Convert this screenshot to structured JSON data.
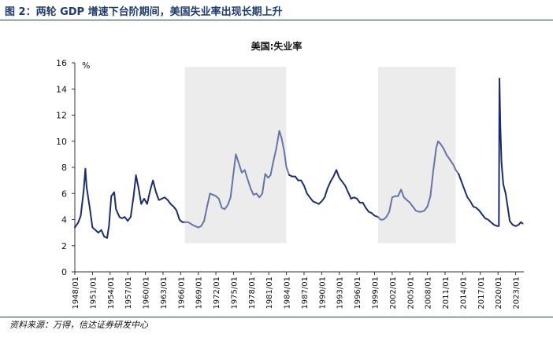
{
  "figure": {
    "title": "图 2：两轮 GDP 增速下台阶期间，美国失业率出现长期上升",
    "source": "资料来源：万得，信达证券研发中心"
  },
  "chart_data": {
    "type": "line",
    "title": "美国:失业率",
    "unit": "%",
    "ylim": [
      0,
      16
    ],
    "y_ticks": [
      "0",
      "2",
      "4",
      "6",
      "8",
      "10",
      "12",
      "14",
      "16"
    ],
    "x_tick_labels": [
      "1948/01",
      "1951/01",
      "1954/01",
      "1957/01",
      "1960/01",
      "1963/01",
      "1966/01",
      "1969/01",
      "1972/01",
      "1975/01",
      "1978/01",
      "1981/01",
      "1984/01",
      "1987/01",
      "1990/01",
      "1993/01",
      "1996/01",
      "1999/01",
      "2002/01",
      "2005/01",
      "2008/01",
      "2011/01",
      "2014/01",
      "2017/01",
      "2020/01",
      "2023/01"
    ],
    "shaded_periods": [
      {
        "start": 1966.7,
        "end": 1984.0
      },
      {
        "start": 1999.6,
        "end": 2012.8
      }
    ],
    "grid": false,
    "legend": "none",
    "series": [
      {
        "color": "#1c2d6b",
        "shaded_color": "#6574a6",
        "points": [
          [
            1948.0,
            3.4
          ],
          [
            1948.6,
            3.8
          ],
          [
            1949.0,
            4.3
          ],
          [
            1949.5,
            6.2
          ],
          [
            1949.8,
            7.9
          ],
          [
            1950.0,
            6.5
          ],
          [
            1950.5,
            5.0
          ],
          [
            1951.0,
            3.4
          ],
          [
            1951.5,
            3.2
          ],
          [
            1952.0,
            3.0
          ],
          [
            1952.5,
            3.2
          ],
          [
            1953.0,
            2.7
          ],
          [
            1953.5,
            2.6
          ],
          [
            1953.8,
            3.5
          ],
          [
            1954.2,
            5.8
          ],
          [
            1954.7,
            6.1
          ],
          [
            1955.0,
            4.8
          ],
          [
            1955.6,
            4.2
          ],
          [
            1956.0,
            4.1
          ],
          [
            1956.5,
            4.2
          ],
          [
            1957.0,
            3.9
          ],
          [
            1957.5,
            4.2
          ],
          [
            1958.0,
            5.8
          ],
          [
            1958.4,
            7.4
          ],
          [
            1958.8,
            6.5
          ],
          [
            1959.3,
            5.2
          ],
          [
            1959.8,
            5.6
          ],
          [
            1960.3,
            5.2
          ],
          [
            1960.8,
            6.2
          ],
          [
            1961.3,
            7.0
          ],
          [
            1961.8,
            6.1
          ],
          [
            1962.3,
            5.5
          ],
          [
            1962.8,
            5.6
          ],
          [
            1963.3,
            5.7
          ],
          [
            1963.8,
            5.5
          ],
          [
            1964.3,
            5.2
          ],
          [
            1964.8,
            5.0
          ],
          [
            1965.3,
            4.7
          ],
          [
            1965.8,
            4.0
          ],
          [
            1966.3,
            3.8
          ],
          [
            1966.7,
            3.8
          ],
          [
            1967.3,
            3.8
          ],
          [
            1968.0,
            3.6
          ],
          [
            1968.5,
            3.5
          ],
          [
            1969.0,
            3.4
          ],
          [
            1969.5,
            3.5
          ],
          [
            1970.0,
            3.9
          ],
          [
            1970.5,
            5.0
          ],
          [
            1971.0,
            6.0
          ],
          [
            1971.5,
            5.9
          ],
          [
            1972.0,
            5.8
          ],
          [
            1972.5,
            5.6
          ],
          [
            1973.0,
            4.9
          ],
          [
            1973.5,
            4.8
          ],
          [
            1974.0,
            5.1
          ],
          [
            1974.5,
            5.7
          ],
          [
            1974.9,
            7.2
          ],
          [
            1975.4,
            9.0
          ],
          [
            1975.9,
            8.3
          ],
          [
            1976.4,
            7.6
          ],
          [
            1976.9,
            7.8
          ],
          [
            1977.4,
            7.1
          ],
          [
            1977.9,
            6.4
          ],
          [
            1978.4,
            5.9
          ],
          [
            1978.9,
            6.0
          ],
          [
            1979.4,
            5.7
          ],
          [
            1979.9,
            6.0
          ],
          [
            1980.4,
            7.5
          ],
          [
            1980.9,
            7.2
          ],
          [
            1981.3,
            7.4
          ],
          [
            1981.8,
            8.5
          ],
          [
            1982.3,
            9.5
          ],
          [
            1982.8,
            10.8
          ],
          [
            1983.2,
            10.2
          ],
          [
            1983.6,
            9.3
          ],
          [
            1984.0,
            8.0
          ],
          [
            1984.5,
            7.4
          ],
          [
            1985.0,
            7.3
          ],
          [
            1985.5,
            7.3
          ],
          [
            1986.0,
            7.0
          ],
          [
            1986.5,
            7.0
          ],
          [
            1987.0,
            6.6
          ],
          [
            1987.5,
            6.0
          ],
          [
            1988.0,
            5.7
          ],
          [
            1988.5,
            5.4
          ],
          [
            1989.0,
            5.3
          ],
          [
            1989.5,
            5.2
          ],
          [
            1990.0,
            5.4
          ],
          [
            1990.5,
            5.7
          ],
          [
            1991.0,
            6.4
          ],
          [
            1991.5,
            6.9
          ],
          [
            1992.0,
            7.3
          ],
          [
            1992.5,
            7.8
          ],
          [
            1993.0,
            7.2
          ],
          [
            1993.5,
            6.9
          ],
          [
            1994.0,
            6.6
          ],
          [
            1994.5,
            6.1
          ],
          [
            1995.0,
            5.6
          ],
          [
            1995.5,
            5.7
          ],
          [
            1996.0,
            5.6
          ],
          [
            1996.5,
            5.3
          ],
          [
            1997.0,
            5.3
          ],
          [
            1997.5,
            4.9
          ],
          [
            1998.0,
            4.6
          ],
          [
            1998.5,
            4.5
          ],
          [
            1999.0,
            4.3
          ],
          [
            1999.6,
            4.2
          ],
          [
            2000.0,
            4.0
          ],
          [
            2000.5,
            4.0
          ],
          [
            2001.0,
            4.2
          ],
          [
            2001.5,
            4.6
          ],
          [
            2002.0,
            5.7
          ],
          [
            2002.5,
            5.8
          ],
          [
            2003.0,
            5.8
          ],
          [
            2003.5,
            6.3
          ],
          [
            2004.0,
            5.7
          ],
          [
            2004.5,
            5.5
          ],
          [
            2005.0,
            5.3
          ],
          [
            2005.5,
            5.0
          ],
          [
            2006.0,
            4.7
          ],
          [
            2006.5,
            4.6
          ],
          [
            2007.0,
            4.6
          ],
          [
            2007.5,
            4.7
          ],
          [
            2008.0,
            5.0
          ],
          [
            2008.5,
            5.8
          ],
          [
            2009.0,
            7.8
          ],
          [
            2009.5,
            9.5
          ],
          [
            2009.8,
            10.0
          ],
          [
            2010.2,
            9.8
          ],
          [
            2010.8,
            9.4
          ],
          [
            2011.2,
            9.0
          ],
          [
            2011.8,
            8.6
          ],
          [
            2012.4,
            8.2
          ],
          [
            2012.8,
            7.8
          ],
          [
            2013.3,
            7.5
          ],
          [
            2013.8,
            6.9
          ],
          [
            2014.3,
            6.3
          ],
          [
            2014.8,
            5.7
          ],
          [
            2015.3,
            5.4
          ],
          [
            2015.8,
            5.0
          ],
          [
            2016.3,
            4.9
          ],
          [
            2016.8,
            4.7
          ],
          [
            2017.3,
            4.4
          ],
          [
            2017.8,
            4.1
          ],
          [
            2018.3,
            4.0
          ],
          [
            2018.8,
            3.8
          ],
          [
            2019.3,
            3.6
          ],
          [
            2019.9,
            3.5
          ],
          [
            2020.15,
            3.5
          ],
          [
            2020.25,
            14.8
          ],
          [
            2020.4,
            11.1
          ],
          [
            2020.6,
            8.4
          ],
          [
            2020.9,
            6.7
          ],
          [
            2021.3,
            6.0
          ],
          [
            2021.7,
            4.8
          ],
          [
            2022.0,
            3.9
          ],
          [
            2022.5,
            3.6
          ],
          [
            2023.0,
            3.5
          ],
          [
            2023.5,
            3.6
          ],
          [
            2023.9,
            3.8
          ],
          [
            2024.2,
            3.7
          ]
        ]
      }
    ]
  }
}
